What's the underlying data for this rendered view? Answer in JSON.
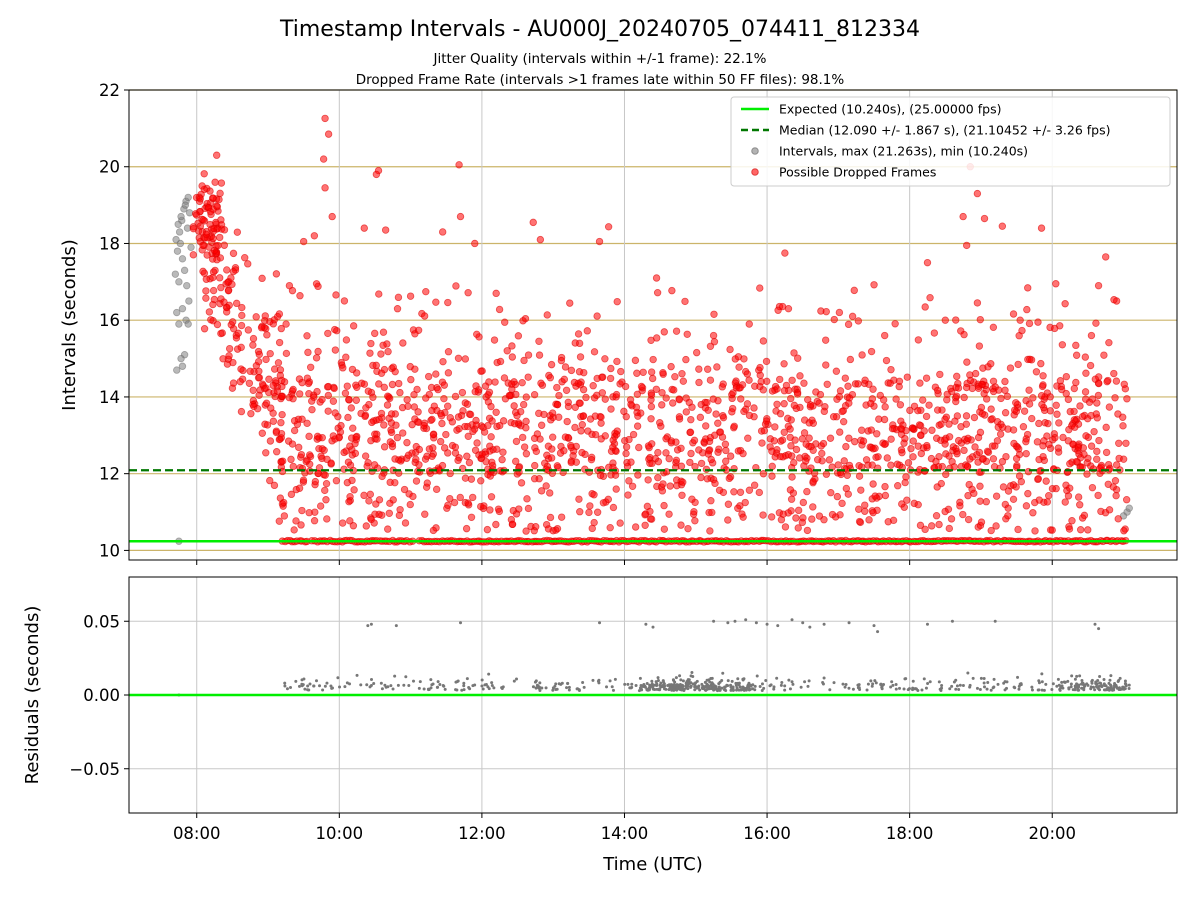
{
  "figure": {
    "title": "Timestamp Intervals - AU000J_20240705_074411_812334",
    "subtitle_line1": "Jitter Quality (intervals within +/-1 frame): 22.1%",
    "subtitle_line2": "Dropped Frame Rate (intervals >1 frames late within 50 FF files): 98.1%"
  },
  "colors": {
    "expected_line": "#00ee00",
    "median_line": "#007700",
    "gray_points": "#808080",
    "red_points": "#ff0000",
    "h_grid": "#ccb46a",
    "v_grid": "#c8c8c8",
    "residual_points": "#777777"
  },
  "chart_data": [
    {
      "type": "scatter",
      "name": "intervals",
      "xlabel": "",
      "ylabel": "Intervals (seconds)",
      "x_unit": "hours UTC",
      "xlim": [
        7.05,
        21.75
      ],
      "ylim": [
        9.75,
        22
      ],
      "yticks": [
        10,
        12,
        14,
        16,
        18,
        20,
        22
      ],
      "ytick_labels": [
        "10",
        "12",
        "14",
        "16",
        "18",
        "20",
        "22"
      ],
      "xticks": [
        8,
        10,
        12,
        14,
        16,
        18,
        20
      ],
      "xtick_labels": [
        "08:00",
        "10:00",
        "12:00",
        "14:00",
        "16:00",
        "18:00",
        "20:00"
      ],
      "grid": "horizontal gold lines at y ticks, vertical gray lines at x ticks",
      "legend_position": "upper right",
      "expected": 10.24,
      "median": 12.09,
      "series": [
        {
          "name": "Expected (10.240s), (25.00000 fps)",
          "kind": "hline",
          "value": 10.24
        },
        {
          "name": "Median (12.090 +/- 1.867 s), (21.10452 +/- 3.26 fps)",
          "kind": "hline-dashed",
          "value": 12.09
        },
        {
          "name": "Intervals, max (21.263s), min (10.240s)",
          "kind": "scatter-gray",
          "points": [
            [
              7.75,
              10.24
            ],
            [
              7.72,
              14.7
            ],
            [
              7.8,
              14.8
            ],
            [
              7.83,
              15.1
            ],
            [
              7.78,
              15.0
            ],
            [
              7.75,
              15.9
            ],
            [
              7.72,
              16.2
            ],
            [
              7.85,
              16.0
            ],
            [
              7.8,
              16.3
            ],
            [
              7.88,
              15.9
            ],
            [
              7.7,
              17.2
            ],
            [
              7.73,
              17.8
            ],
            [
              7.76,
              18.3
            ],
            [
              7.79,
              18.6
            ],
            [
              7.82,
              18.9
            ],
            [
              7.85,
              19.1
            ],
            [
              7.88,
              19.2
            ],
            [
              7.9,
              18.8
            ],
            [
              7.74,
              18.5
            ],
            [
              7.77,
              18.0
            ],
            [
              7.8,
              17.6
            ],
            [
              7.83,
              17.3
            ],
            [
              7.86,
              16.9
            ],
            [
              7.89,
              16.5
            ],
            [
              7.71,
              18.1
            ],
            [
              7.78,
              18.7
            ],
            [
              7.84,
              19.0
            ],
            [
              7.87,
              18.4
            ],
            [
              7.92,
              17.9
            ],
            [
              7.75,
              17.0
            ],
            [
              21.0,
              10.9
            ],
            [
              21.05,
              11.0
            ],
            [
              21.08,
              11.1
            ]
          ]
        },
        {
          "name": "Possible Dropped Frames",
          "kind": "scatter-red"
        }
      ]
    },
    {
      "type": "scatter",
      "name": "residuals",
      "xlabel": "Time (UTC)",
      "ylabel": "Residuals (seconds)",
      "x_unit": "hours UTC",
      "xlim": [
        7.05,
        21.75
      ],
      "ylim": [
        -0.08,
        0.08
      ],
      "yticks": [
        -0.05,
        0.0,
        0.05
      ],
      "ytick_labels": [
        "−0.05",
        "0.00",
        "0.05"
      ],
      "xticks": [
        8,
        10,
        12,
        14,
        16,
        18,
        20
      ],
      "xtick_labels": [
        "08:00",
        "10:00",
        "12:00",
        "14:00",
        "16:00",
        "18:00",
        "20:00"
      ],
      "grid": "gray grid at x and y ticks",
      "zero_line": 0.0,
      "outliers": [
        [
          10.4,
          0.047
        ],
        [
          10.45,
          0.048
        ],
        [
          10.8,
          0.047
        ],
        [
          11.7,
          0.049
        ],
        [
          13.65,
          0.049
        ],
        [
          14.3,
          0.048
        ],
        [
          14.4,
          0.046
        ],
        [
          15.25,
          0.05
        ],
        [
          15.45,
          0.049
        ],
        [
          15.55,
          0.05
        ],
        [
          15.7,
          0.051
        ],
        [
          15.85,
          0.049
        ],
        [
          16.0,
          0.048
        ],
        [
          16.15,
          0.047
        ],
        [
          16.35,
          0.051
        ],
        [
          16.5,
          0.049
        ],
        [
          16.6,
          0.046
        ],
        [
          16.8,
          0.048
        ],
        [
          17.15,
          0.049
        ],
        [
          17.5,
          0.047
        ],
        [
          17.55,
          0.043
        ],
        [
          18.25,
          0.048
        ],
        [
          18.6,
          0.05
        ],
        [
          19.2,
          0.05
        ],
        [
          20.6,
          0.048
        ],
        [
          20.65,
          0.045
        ]
      ]
    }
  ]
}
